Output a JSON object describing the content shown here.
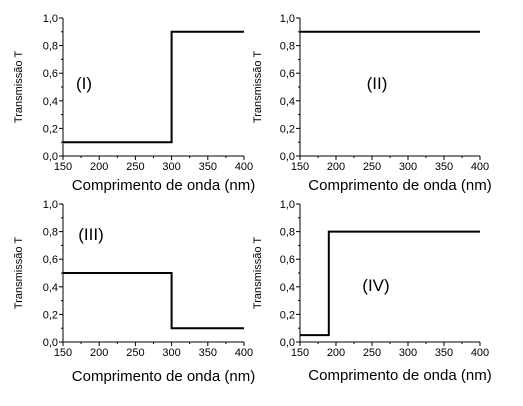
{
  "chart_data": [
    {
      "type": "line",
      "panel_label": "(I)",
      "xlabel": "Comprimento de onda (nm)",
      "ylabel": "Transmissão T",
      "xlim": [
        150,
        400
      ],
      "ylim": [
        0,
        1.0
      ],
      "xticks": [
        "150",
        "200",
        "250",
        "300",
        "350",
        "400"
      ],
      "yticks": [
        "0,0",
        "0,2",
        "0,4",
        "0,6",
        "0,8",
        "1,0"
      ],
      "series": [
        {
          "x": [
            150,
            300,
            300,
            400
          ],
          "y": [
            0.1,
            0.1,
            0.9,
            0.9
          ]
        }
      ]
    },
    {
      "type": "line",
      "panel_label": "(II)",
      "xlabel": "Comprimento de onda (nm)",
      "ylabel": "Transmissão T",
      "xlim": [
        150,
        400
      ],
      "ylim": [
        0,
        1.0
      ],
      "xticks": [
        "150",
        "200",
        "250",
        "300",
        "350",
        "400"
      ],
      "yticks": [
        "0,0",
        "0,2",
        "0,4",
        "0,6",
        "0,8",
        "1,0"
      ],
      "series": [
        {
          "x": [
            150,
            400
          ],
          "y": [
            0.9,
            0.9
          ]
        }
      ]
    },
    {
      "type": "line",
      "panel_label": "(III)",
      "xlabel": "Comprimento de onda (nm)",
      "ylabel": "Transmissão T",
      "xlim": [
        150,
        400
      ],
      "ylim": [
        0,
        1.0
      ],
      "xticks": [
        "150",
        "200",
        "250",
        "300",
        "350",
        "400"
      ],
      "yticks": [
        "0,0",
        "0,2",
        "0,4",
        "0,6",
        "0,8",
        "1,0"
      ],
      "series": [
        {
          "x": [
            150,
            300,
            300,
            400
          ],
          "y": [
            0.5,
            0.5,
            0.1,
            0.1
          ]
        }
      ]
    },
    {
      "type": "line",
      "panel_label": "(IV)",
      "xlabel": "Comprimento de onda (nm)",
      "ylabel": "Transmissão T",
      "xlim": [
        150,
        400
      ],
      "ylim": [
        0,
        1.0
      ],
      "xticks": [
        "150",
        "200",
        "250",
        "300",
        "350",
        "400"
      ],
      "yticks": [
        "0,0",
        "0,2",
        "0,4",
        "0,6",
        "0,8",
        "1,0"
      ],
      "series": [
        {
          "x": [
            150,
            190,
            190,
            400
          ],
          "y": [
            0.05,
            0.05,
            0.8,
            0.8
          ]
        }
      ]
    }
  ]
}
